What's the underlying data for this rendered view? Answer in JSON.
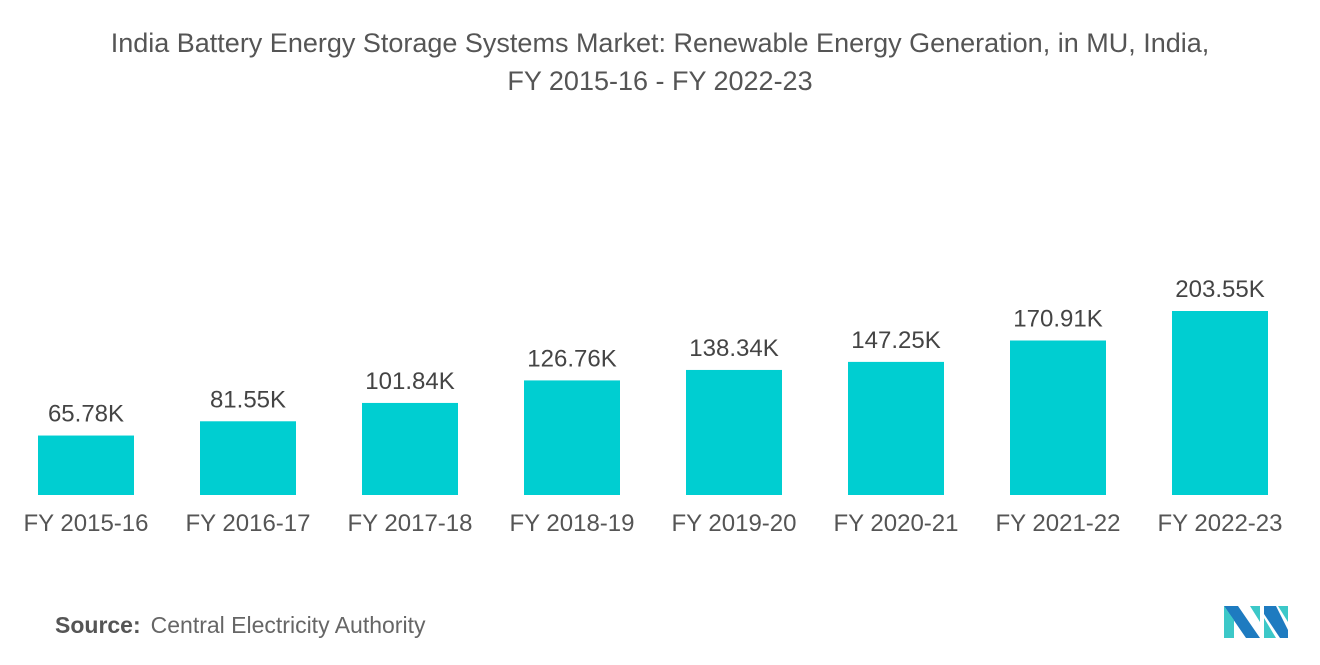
{
  "chart_data": {
    "type": "bar",
    "title": "India Battery Energy Storage Systems Market: Renewable Energy Generation, in MU, India,",
    "subtitle": "FY 2015-16 - FY 2022-23",
    "categories": [
      "FY 2015-16",
      "FY 2016-17",
      "FY 2017-18",
      "FY 2018-19",
      "FY 2019-20",
      "FY 2020-21",
      "FY 2021-22",
      "FY 2022-23"
    ],
    "values": [
      65.78,
      81.55,
      101.84,
      126.76,
      138.34,
      147.25,
      170.91,
      203.55
    ],
    "labels": [
      "65.78K",
      "81.55K",
      "101.84K",
      "126.76K",
      "138.34K",
      "147.25K",
      "170.91K",
      "203.55K"
    ],
    "unit": "K MU",
    "ylim": [
      0,
      220
    ],
    "grid": false,
    "bar_color": "#00CED1"
  },
  "source": {
    "label": "Source:",
    "text": "Central Electricity Authority"
  },
  "logo_colors": [
    "#1E7BC0",
    "#3CC8C8"
  ]
}
